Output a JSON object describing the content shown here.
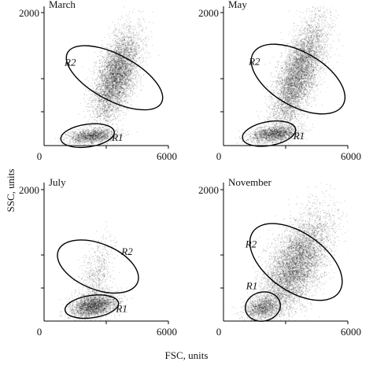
{
  "axis_titles": {
    "x": "FSC, units",
    "y": "SSC, units"
  },
  "chart_data": [
    {
      "type": "scatter",
      "title": "March",
      "xlim": [
        0,
        6000
      ],
      "ylim": [
        0,
        2000
      ],
      "x_ticks": [
        "0",
        "6000"
      ],
      "y_ticks": [
        "2000"
      ],
      "gates": [
        {
          "label": "R1",
          "cx": 2100,
          "cy": 150,
          "rx": 1300,
          "ry": 170,
          "angle_deg": 8
        },
        {
          "label": "R2",
          "cx": 3400,
          "cy": 1020,
          "rx": 1100,
          "ry": 800,
          "angle_deg": 62
        }
      ],
      "populations": [
        {
          "cx": 3500,
          "cy": 1050,
          "sx": 550,
          "sy": 330,
          "corr": 0.55,
          "n": 5200
        },
        {
          "cx": 2300,
          "cy": 140,
          "sx": 600,
          "sy": 55,
          "corr": 0.3,
          "n": 1500
        }
      ]
    },
    {
      "type": "scatter",
      "title": "May",
      "xlim": [
        0,
        6000
      ],
      "ylim": [
        0,
        2000
      ],
      "x_ticks": [
        "0",
        "6000"
      ],
      "y_ticks": [
        "2000"
      ],
      "gates": [
        {
          "label": "R1",
          "cx": 2200,
          "cy": 180,
          "rx": 1300,
          "ry": 180,
          "angle_deg": 10
        },
        {
          "label": "R2",
          "cx": 3600,
          "cy": 1000,
          "rx": 1300,
          "ry": 780,
          "angle_deg": 60
        }
      ],
      "populations": [
        {
          "cx": 3600,
          "cy": 1050,
          "sx": 650,
          "sy": 420,
          "corr": 0.7,
          "n": 5600
        },
        {
          "cx": 2400,
          "cy": 170,
          "sx": 600,
          "sy": 60,
          "corr": 0.3,
          "n": 1700
        }
      ]
    },
    {
      "type": "scatter",
      "title": "July",
      "xlim": [
        0,
        6000
      ],
      "ylim": [
        0,
        2000
      ],
      "x_ticks": [
        "0",
        "6000"
      ],
      "y_ticks": [
        "2000"
      ],
      "gates": [
        {
          "label": "R1",
          "cx": 2300,
          "cy": 220,
          "rx": 1300,
          "ry": 170,
          "angle_deg": 8
        },
        {
          "label": "R2",
          "cx": 2600,
          "cy": 830,
          "rx": 1100,
          "ry": 650,
          "angle_deg": 68
        }
      ],
      "populations": [
        {
          "cx": 2400,
          "cy": 230,
          "sx": 550,
          "sy": 90,
          "corr": 0.3,
          "n": 2600
        },
        {
          "cx": 2500,
          "cy": 650,
          "sx": 450,
          "sy": 300,
          "corr": 0.4,
          "n": 700
        }
      ]
    },
    {
      "type": "scatter",
      "title": "November",
      "xlim": [
        0,
        6000
      ],
      "ylim": [
        0,
        2000
      ],
      "x_ticks": [
        "0",
        "6000"
      ],
      "y_ticks": [
        "2000"
      ],
      "gates": [
        {
          "label": "R1",
          "cx": 1900,
          "cy": 220,
          "rx": 850,
          "ry": 220,
          "angle_deg": 12
        },
        {
          "label": "R2",
          "cx": 3500,
          "cy": 900,
          "rx": 1400,
          "ry": 800,
          "angle_deg": 55
        }
      ],
      "populations": [
        {
          "cx": 3500,
          "cy": 850,
          "sx": 800,
          "sy": 380,
          "corr": 0.6,
          "n": 6200
        },
        {
          "cx": 1900,
          "cy": 200,
          "sx": 450,
          "sy": 90,
          "corr": 0.3,
          "n": 1200
        }
      ]
    }
  ]
}
